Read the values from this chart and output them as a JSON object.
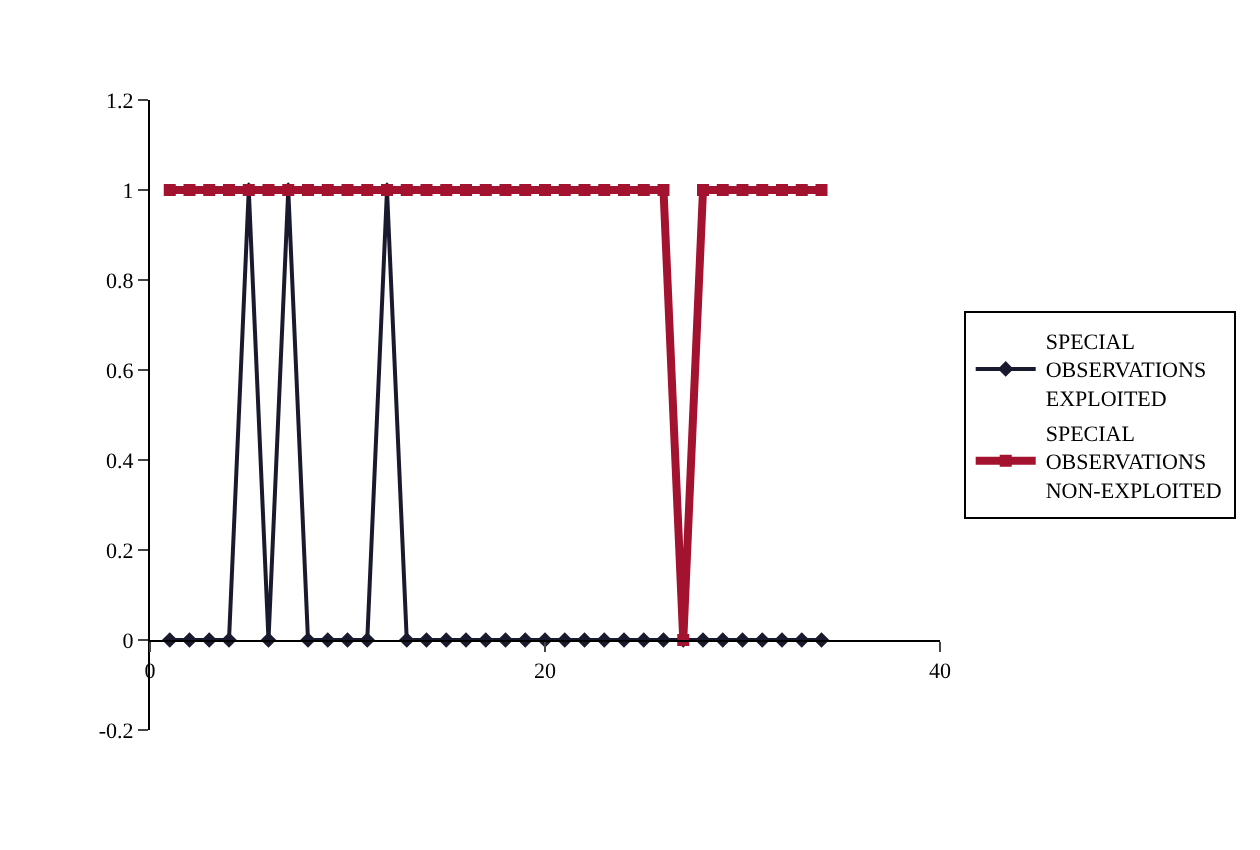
{
  "chart_data": {
    "type": "line",
    "x": [
      1,
      2,
      3,
      4,
      5,
      6,
      7,
      8,
      9,
      10,
      11,
      12,
      13,
      14,
      15,
      16,
      17,
      18,
      19,
      20,
      21,
      22,
      23,
      24,
      25,
      26,
      27,
      28,
      29,
      30,
      31,
      32,
      33,
      34
    ],
    "series": [
      {
        "name": "SPECIAL OBSERVATIONS EXPLOITED",
        "color": "#1a1a2e",
        "marker": "diamond",
        "values": [
          0,
          0,
          0,
          0,
          1,
          0,
          1,
          0,
          0,
          0,
          0,
          1,
          0,
          0,
          0,
          0,
          0,
          0,
          0,
          0,
          0,
          0,
          0,
          0,
          0,
          0,
          0,
          0,
          0,
          0,
          0,
          0,
          0,
          0
        ]
      },
      {
        "name": "SPECIAL OBSERVATIONS NON-EXPLOITED",
        "color": "#a3122e",
        "marker": "square",
        "values": [
          1,
          1,
          1,
          1,
          1,
          1,
          1,
          1,
          1,
          1,
          1,
          1,
          1,
          1,
          1,
          1,
          1,
          1,
          1,
          1,
          1,
          1,
          1,
          1,
          1,
          1,
          0,
          1,
          1,
          1,
          1,
          1,
          1,
          1
        ]
      }
    ],
    "xlim": [
      0,
      40
    ],
    "xticks": [
      0,
      20,
      40
    ],
    "ylim": [
      -0.2,
      1.2
    ],
    "yticks": [
      -0.2,
      0,
      0.2,
      0.4,
      0.6,
      0.8,
      1,
      1.2
    ],
    "legend": "right"
  }
}
